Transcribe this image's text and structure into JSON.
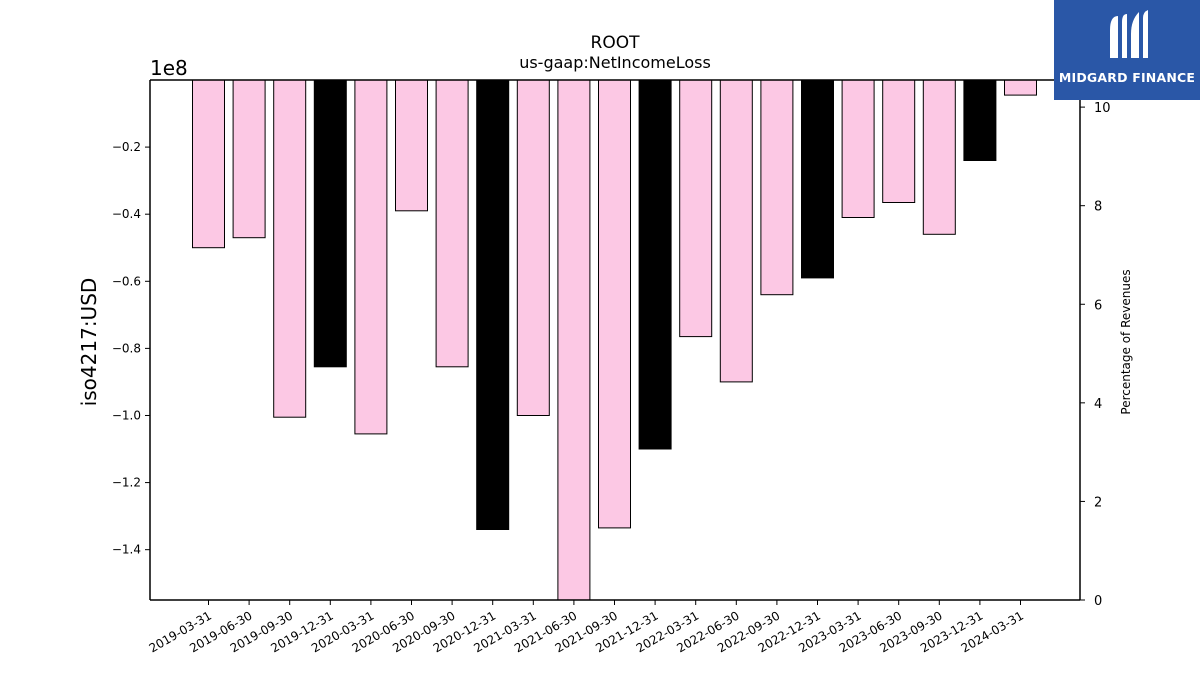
{
  "brand": {
    "name": "MIDGARD FINANCE",
    "logo_icon": "midgard-m-logo-icon",
    "background": "#2a57a7"
  },
  "chart_data": {
    "type": "bar",
    "title": "ROOT",
    "subtitle": "us-gaap:NetIncomeLoss",
    "ylabel": "iso4217:USD",
    "y2label": "Percentage of Revenues",
    "offset_label": "1e8",
    "categories": [
      "2019-03-31",
      "2019-06-30",
      "2019-09-30",
      "2019-12-31",
      "2020-03-31",
      "2020-06-30",
      "2020-09-30",
      "2020-12-31",
      "2021-03-31",
      "2021-06-30",
      "2021-09-30",
      "2021-12-31",
      "2022-03-31",
      "2022-06-30",
      "2022-09-30",
      "2022-12-31",
      "2023-03-31",
      "2023-06-30",
      "2023-09-30",
      "2023-12-31",
      "2024-03-31"
    ],
    "values": [
      -0.5,
      -0.47,
      -1.005,
      -0.855,
      -1.055,
      -0.39,
      -0.855,
      -1.34,
      -1.0,
      -1.56,
      -1.335,
      -1.1,
      -0.765,
      -0.9,
      -0.64,
      -0.59,
      -0.41,
      -0.365,
      -0.46,
      -0.24,
      -0.045
    ],
    "bar_types": [
      "q",
      "q",
      "q",
      "fy",
      "q",
      "q",
      "q",
      "fy",
      "q",
      "q",
      "q",
      "fy",
      "q",
      "q",
      "q",
      "fy",
      "q",
      "q",
      "q",
      "fy",
      "q"
    ],
    "colors": {
      "q": "#fcc8e4",
      "fy": "#000000",
      "edge": "#000000"
    },
    "ylim": [
      -1.55,
      0.0
    ],
    "yticks": [
      -0.2,
      -0.4,
      -0.6,
      -0.8,
      -1.0,
      -1.2,
      -1.4
    ],
    "y2lim": [
      0,
      10.55
    ],
    "y2ticks": [
      0,
      2,
      4,
      6,
      8,
      10
    ],
    "grid": false
  }
}
